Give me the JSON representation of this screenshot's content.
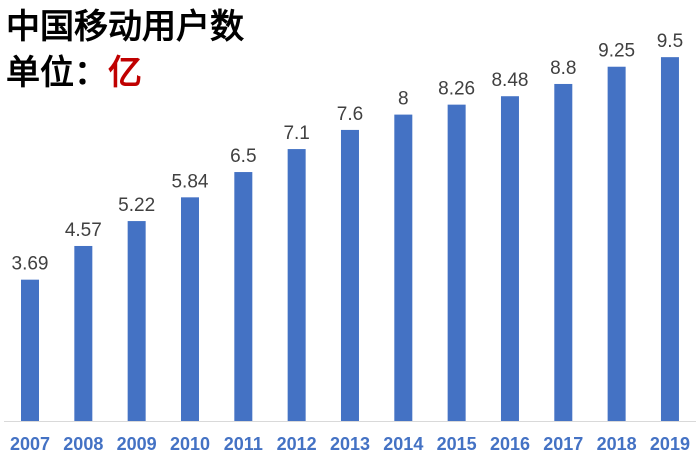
{
  "chart_data": {
    "type": "bar",
    "title": "中国移动用户数",
    "unit_label": "单位：",
    "unit_value": "亿",
    "categories": [
      "2007",
      "2008",
      "2009",
      "2010",
      "2011",
      "2012",
      "2013",
      "2014",
      "2015",
      "2016",
      "2017",
      "2018",
      "2019"
    ],
    "values": [
      3.69,
      4.57,
      5.22,
      5.84,
      6.5,
      7.1,
      7.6,
      8,
      8.26,
      8.48,
      8.8,
      9.25,
      9.5
    ],
    "value_labels": [
      "3.69",
      "4.57",
      "5.22",
      "5.84",
      "6.5",
      "7.1",
      "7.6",
      "8",
      "8.26",
      "8.48",
      "8.8",
      "9.25",
      "9.5"
    ],
    "xlabel": "",
    "ylabel": "",
    "ylim": [
      0,
      10
    ],
    "grid": false,
    "legend": "none",
    "colors": {
      "bar": "#4472c4",
      "tick_label": "#4472c4",
      "data_label": "#404040",
      "title": "#000000",
      "unit_value": "#c00000",
      "axis": "#d9d9d9"
    }
  }
}
